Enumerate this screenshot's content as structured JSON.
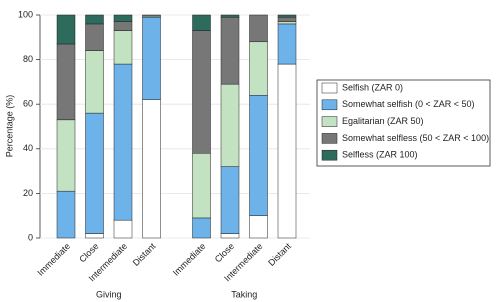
{
  "chart_data": {
    "type": "stacked_bar",
    "y_label": "Percentage (%)",
    "groups": [
      "Giving",
      "Taking"
    ],
    "categories": [
      "Immediate",
      "Close",
      "Intermediate",
      "Distant",
      "Immediate",
      "Close",
      "Intermediate",
      "Distant"
    ],
    "series": [
      {
        "name": "Selfish (ZAR 0)",
        "color": "#ffffff",
        "values": [
          0,
          2,
          8,
          62,
          0,
          2,
          10,
          78
        ]
      },
      {
        "name": "Somewhat selfish (0 < ZAR < 50)",
        "color": "#6db3ea",
        "values": [
          21,
          54,
          70,
          37,
          9,
          30,
          54,
          18
        ]
      },
      {
        "name": "Egalitarian (ZAR 50)",
        "color": "#c2e2c2",
        "values": [
          32,
          28,
          15,
          0.5,
          29,
          37,
          24,
          1
        ]
      },
      {
        "name": "Somewhat selfless (50 < ZAR < 100)",
        "color": "#777777",
        "values": [
          34,
          12,
          4,
          0.5,
          55,
          30,
          12,
          2
        ]
      },
      {
        "name": "Selfless (ZAR 100)",
        "color": "#2d6b5c",
        "values": [
          13,
          4,
          3,
          0,
          7,
          1,
          0,
          1
        ]
      }
    ],
    "ylim": [
      0,
      100
    ],
    "yticks": [
      0,
      20,
      40,
      60,
      80,
      100
    ],
    "grid": true,
    "legend": "right"
  }
}
